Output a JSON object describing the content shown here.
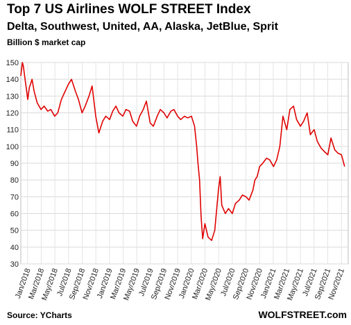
{
  "chart_data": {
    "type": "line",
    "title": "Top 7 US Airlines WOLF STREET Index",
    "subtitle": "Delta, Southwest, United, AA, Alaska, JetBlue, Sprit",
    "ylabel": "Billion $ market cap",
    "ylim": [
      30,
      150
    ],
    "yticks": [
      30,
      40,
      50,
      60,
      70,
      80,
      90,
      100,
      110,
      120,
      130,
      140,
      150
    ],
    "grid": true,
    "xticks": [
      "Jan/2018",
      "Mar/2018",
      "May/2018",
      "Jul/2018",
      "Sep/2018",
      "Nov/2018",
      "Jan/2019",
      "Mar/2019",
      "May/2019",
      "Jul/2019",
      "Sep/2019",
      "Nov/2019",
      "Jan/2020",
      "Mar/2020",
      "May/2020",
      "Jul/2020",
      "Sep/2020",
      "Nov/2020",
      "Jan/2021",
      "Mar/2021",
      "May/2021",
      "Jul/2021",
      "Sep/2021",
      "Nov/2021"
    ],
    "line_color": "#e00000",
    "series": [
      {
        "x": [
          "2018-01-01",
          "2018-01-08",
          "2018-01-12",
          "2018-01-22",
          "2018-02-01",
          "2018-02-08",
          "2018-02-20",
          "2018-03-01",
          "2018-03-15",
          "2018-04-01",
          "2018-04-15",
          "2018-05-01",
          "2018-05-15",
          "2018-06-01",
          "2018-06-15",
          "2018-07-01",
          "2018-07-15",
          "2018-08-01",
          "2018-08-15",
          "2018-09-01",
          "2018-09-15",
          "2018-10-01",
          "2018-10-15",
          "2018-11-01",
          "2018-11-15",
          "2018-12-01",
          "2018-12-15",
          "2019-01-01",
          "2019-01-15",
          "2019-02-01",
          "2019-02-15",
          "2019-03-01",
          "2019-03-15",
          "2019-04-01",
          "2019-04-15",
          "2019-05-01",
          "2019-05-15",
          "2019-06-01",
          "2019-06-15",
          "2019-07-01",
          "2019-07-15",
          "2019-08-01",
          "2019-08-15",
          "2019-09-01",
          "2019-09-15",
          "2019-10-01",
          "2019-10-15",
          "2019-11-01",
          "2019-11-15",
          "2019-12-01",
          "2019-12-15",
          "2020-01-01",
          "2020-01-15",
          "2020-02-01",
          "2020-02-15",
          "2020-02-24",
          "2020-03-01",
          "2020-03-08",
          "2020-03-15",
          "2020-03-22",
          "2020-04-01",
          "2020-04-15",
          "2020-05-01",
          "2020-05-15",
          "2020-06-01",
          "2020-06-08",
          "2020-06-15",
          "2020-07-01",
          "2020-07-15",
          "2020-08-01",
          "2020-08-15",
          "2020-09-01",
          "2020-09-15",
          "2020-10-01",
          "2020-10-15",
          "2020-11-01",
          "2020-11-10",
          "2020-11-20",
          "2020-12-01",
          "2020-12-15",
          "2021-01-01",
          "2021-01-15",
          "2021-02-01",
          "2021-02-15",
          "2021-03-01",
          "2021-03-15",
          "2021-04-01",
          "2021-04-15",
          "2021-05-01",
          "2021-05-15",
          "2021-06-01",
          "2021-06-15",
          "2021-07-01",
          "2021-07-15",
          "2021-08-01",
          "2021-08-15",
          "2021-09-01",
          "2021-09-15",
          "2021-10-01",
          "2021-10-15",
          "2021-11-01",
          "2021-11-15",
          "2021-12-01",
          "2021-12-15"
        ],
        "values": [
          142,
          150,
          148,
          138,
          128,
          135,
          140,
          133,
          126,
          122,
          124,
          121,
          122,
          118,
          120,
          128,
          132,
          137,
          140,
          133,
          128,
          120,
          124,
          130,
          136,
          118,
          108,
          115,
          118,
          116,
          121,
          124,
          120,
          118,
          122,
          121,
          115,
          112,
          118,
          122,
          127,
          114,
          112,
          118,
          122,
          120,
          117,
          121,
          122,
          118,
          116,
          118,
          117,
          118,
          112,
          100,
          90,
          80,
          58,
          45,
          54,
          46,
          44,
          50,
          75,
          82,
          65,
          60,
          63,
          60,
          66,
          68,
          71,
          70,
          68,
          74,
          80,
          82,
          88,
          90,
          93,
          92,
          88,
          92,
          100,
          118,
          110,
          122,
          124,
          116,
          112,
          115,
          120,
          107,
          110,
          103,
          99,
          97,
          95,
          105,
          98,
          96,
          95,
          88
        ]
      }
    ]
  },
  "footer": {
    "source": "Source: YCharts",
    "brand": "WOLFSTREET.com"
  }
}
